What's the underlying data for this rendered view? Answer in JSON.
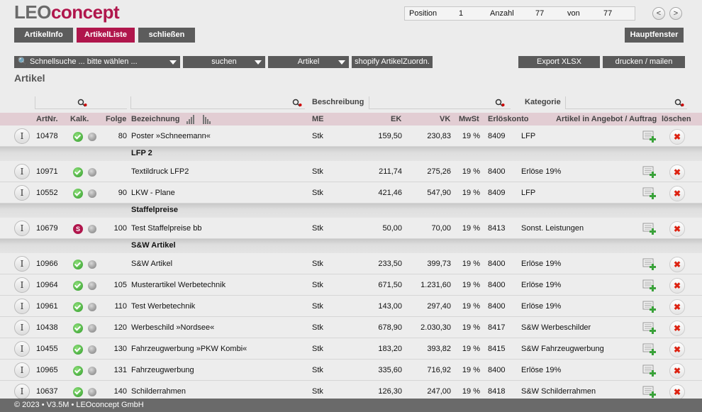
{
  "logo": {
    "part1": "LEO",
    "part2": "concept"
  },
  "position": {
    "pos_label": "Position",
    "pos_value": "1",
    "anzahl_label": "Anzahl",
    "anzahl_value": "77",
    "von_label": "von",
    "von_value": "77"
  },
  "nav": {
    "prev": "<",
    "next": ">"
  },
  "tabs": {
    "info": "ArtikelInfo",
    "liste": "ArtikelListe",
    "close": "schließen",
    "main": "Hauptfenster"
  },
  "toolbar": {
    "search": "Schnellsuche ... bitte wählen ...",
    "suchen": "suchen",
    "artikel": "Artikel",
    "shopify": "shopify ArtikelZuordn.",
    "export": "Export XLSX",
    "print": "drucken / mailen"
  },
  "section_title": "Artikel",
  "filters": {
    "beschreibung": "Beschreibung",
    "kategorie": "Kategorie"
  },
  "columns": {
    "artnr": "ArtNr.",
    "kalk": "Kalk.",
    "folge": "Folge",
    "bez": "Bezeichnung",
    "me": "ME",
    "ek": "EK",
    "vk": "VK",
    "mwst": "MwSt",
    "konto": "Erlöskonto",
    "angebot": "Artikel in Angebot / Auftrag",
    "loeschen": "löschen"
  },
  "rows": [
    {
      "artnr": "10478",
      "kalk": "check",
      "folge": "80",
      "bez": "Poster »Schneemann«",
      "me": "Stk",
      "ek": "159,50",
      "vk": "230,83",
      "mwst": "19 %",
      "konto": "8409",
      "kat": "LFP"
    },
    {
      "group": "LFP 2"
    },
    {
      "artnr": "10971",
      "kalk": "check",
      "folge": "",
      "bez": "Textildruck LFP2",
      "me": "Stk",
      "ek": "211,74",
      "vk": "275,26",
      "mwst": "19 %",
      "konto": "8400",
      "kat": "Erlöse 19%"
    },
    {
      "artnr": "10552",
      "kalk": "check",
      "folge": "90",
      "bez": "LKW - Plane",
      "me": "Stk",
      "ek": "421,46",
      "vk": "547,90",
      "mwst": "19 %",
      "konto": "8409",
      "kat": "LFP"
    },
    {
      "group": "Staffelpreise"
    },
    {
      "artnr": "10679",
      "kalk": "S",
      "folge": "100",
      "bez": "Test Staffelpreise bb",
      "me": "Stk",
      "ek": "50,00",
      "vk": "70,00",
      "mwst": "19 %",
      "konto": "8413",
      "kat": "Sonst. Leistungen"
    },
    {
      "group": "S&W Artikel"
    },
    {
      "artnr": "10966",
      "kalk": "check",
      "folge": "",
      "bez": "S&W Artikel",
      "me": "Stk",
      "ek": "233,50",
      "vk": "399,73",
      "mwst": "19 %",
      "konto": "8400",
      "kat": "Erlöse 19%"
    },
    {
      "artnr": "10964",
      "kalk": "check",
      "folge": "105",
      "bez": "Musterartikel Werbetechnik",
      "me": "Stk",
      "ek": "671,50",
      "vk": "1.231,60",
      "mwst": "19 %",
      "konto": "8400",
      "kat": "Erlöse 19%"
    },
    {
      "artnr": "10961",
      "kalk": "check",
      "folge": "110",
      "bez": "Test Werbetechnik",
      "me": "Stk",
      "ek": "143,00",
      "vk": "297,40",
      "mwst": "19 %",
      "konto": "8400",
      "kat": "Erlöse 19%"
    },
    {
      "artnr": "10438",
      "kalk": "check",
      "folge": "120",
      "bez": "Werbeschild »Nordsee«",
      "me": "Stk",
      "ek": "678,90",
      "vk": "2.030,30",
      "mwst": "19 %",
      "konto": "8417",
      "kat": "S&W Werbeschilder"
    },
    {
      "artnr": "10455",
      "kalk": "check",
      "folge": "130",
      "bez": "Fahrzeugwerbung »PKW Kombi«",
      "me": "Stk",
      "ek": "183,20",
      "vk": "393,82",
      "mwst": "19 %",
      "konto": "8415",
      "kat": "S&W Fahrzeugwerbung"
    },
    {
      "artnr": "10965",
      "kalk": "check",
      "folge": "131",
      "bez": "Fahrzeugwerbung",
      "me": "Stk",
      "ek": "335,60",
      "vk": "716,92",
      "mwst": "19 %",
      "konto": "8400",
      "kat": "Erlöse 19%"
    },
    {
      "artnr": "10637",
      "kalk": "check",
      "folge": "140",
      "bez": "Schilderrahmen",
      "me": "Stk",
      "ek": "126,30",
      "vk": "247,00",
      "mwst": "19 %",
      "konto": "8418",
      "kat": "S&W Schilderrahmen"
    }
  ],
  "footer": "© 2023 • V3.5M • LEOconcept GmbH"
}
